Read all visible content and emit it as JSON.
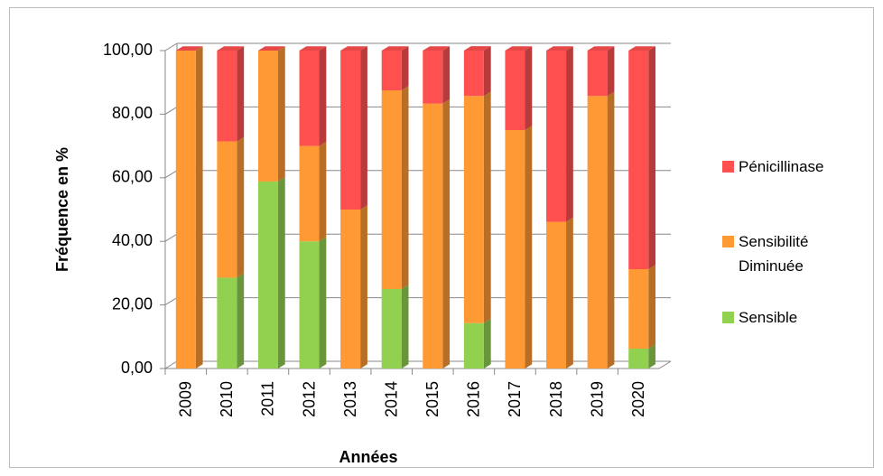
{
  "chart_data": {
    "type": "bar",
    "stacked": true,
    "x_label": "Années",
    "y_label": "Fréquence en %",
    "categories": [
      "2009",
      "2010",
      "2011",
      "2012",
      "2013",
      "2014",
      "2015",
      "2016",
      "2017",
      "2018",
      "2019",
      "2020"
    ],
    "series": [
      {
        "name": "Sensible",
        "color": "#92d050",
        "values": [
          0,
          28.57,
          58.82,
          40,
          0,
          25,
          0,
          14.29,
          0,
          0,
          0,
          6.25
        ]
      },
      {
        "name": "Sensibilité Diminuée",
        "color": "#ff9933",
        "values": [
          100,
          42.86,
          41.18,
          30,
          50,
          62.5,
          83.33,
          71.43,
          75,
          46.15,
          85.71,
          25
        ]
      },
      {
        "name": "Pénicillinase",
        "color": "#ff5050",
        "values": [
          0,
          28.57,
          0,
          30,
          50,
          12.5,
          16.67,
          14.29,
          25,
          53.85,
          14.29,
          68.75
        ]
      }
    ],
    "ylim": [
      0,
      100
    ],
    "yticks": [
      {
        "value": 0,
        "label": "0,00"
      },
      {
        "value": 20,
        "label": "20,00"
      },
      {
        "value": 40,
        "label": "40,00"
      },
      {
        "value": 60,
        "label": "60,00"
      },
      {
        "value": 80,
        "label": "80,00"
      },
      {
        "value": 100,
        "label": "100,00"
      }
    ],
    "grid": true,
    "legend": "right"
  }
}
